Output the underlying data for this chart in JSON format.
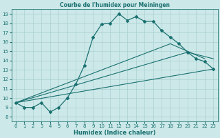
{
  "title": "Courbe de l'humidex pour Meiningen",
  "xlabel": "Humidex (Indice chaleur)",
  "bg_color": "#cce8e8",
  "line_color": "#1a7070",
  "grid_color": "#aad0d0",
  "xlim": [
    -0.5,
    23.5
  ],
  "ylim": [
    7.5,
    19.5
  ],
  "xticks": [
    0,
    1,
    2,
    3,
    4,
    5,
    6,
    7,
    8,
    9,
    10,
    11,
    12,
    13,
    14,
    15,
    16,
    17,
    18,
    19,
    20,
    21,
    22,
    23
  ],
  "yticks": [
    8,
    9,
    10,
    11,
    12,
    13,
    14,
    15,
    16,
    17,
    18,
    19
  ],
  "main_line_x": [
    0,
    1,
    2,
    3,
    4,
    5,
    6,
    7,
    8,
    9,
    10,
    11,
    12,
    13,
    14,
    15,
    16,
    17,
    18,
    19,
    20,
    21,
    22,
    23
  ],
  "main_line_y": [
    9.5,
    9.0,
    9.0,
    9.5,
    8.5,
    9.0,
    10.0,
    11.5,
    13.5,
    16.5,
    17.9,
    18.0,
    19.0,
    18.3,
    18.7,
    18.2,
    18.2,
    17.2,
    16.5,
    15.8,
    14.9,
    14.2,
    13.9,
    13.1
  ],
  "straight_lines": [
    {
      "x": [
        0,
        23
      ],
      "y": [
        9.5,
        13.1
      ]
    },
    {
      "x": [
        0,
        20,
        23
      ],
      "y": [
        9.5,
        14.9,
        14.2
      ]
    },
    {
      "x": [
        0,
        18,
        22
      ],
      "y": [
        9.5,
        15.8,
        14.2
      ]
    }
  ],
  "title_fontsize": 5.5,
  "tick_fontsize": 5.0,
  "xlabel_fontsize": 6.0
}
